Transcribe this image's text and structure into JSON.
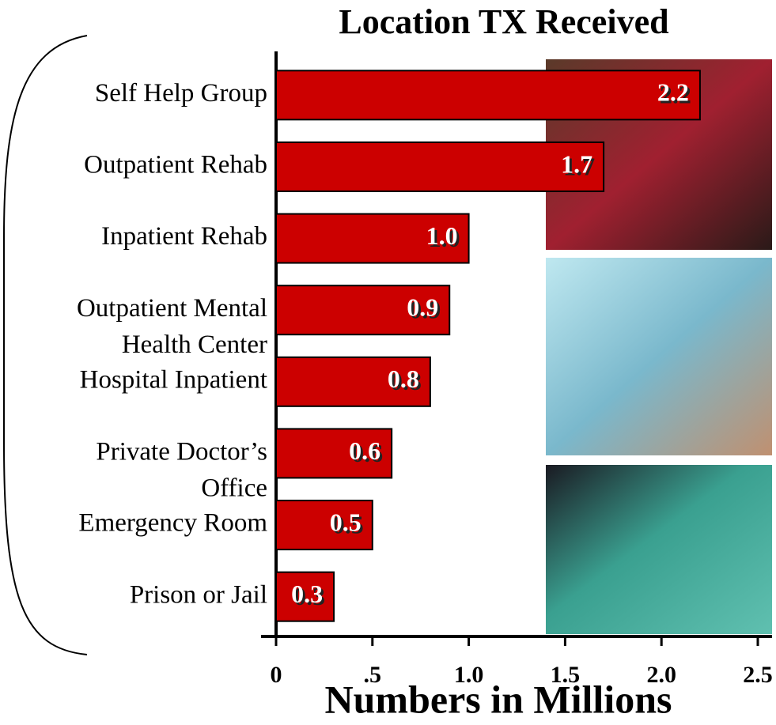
{
  "chart_data": {
    "type": "bar",
    "orientation": "horizontal",
    "title": "Location TX Received",
    "x_label": "Numbers in Millions",
    "categories": [
      "Self Help Group",
      "Outpatient Rehab",
      "Inpatient Rehab",
      "Outpatient Mental\nHealth Center",
      "Hospital Inpatient",
      "Private Doctor’s\nOffice",
      "Emergency Room",
      "Prison or Jail"
    ],
    "values": [
      2.2,
      1.7,
      1.0,
      0.9,
      0.8,
      0.6,
      0.5,
      0.3
    ],
    "value_labels": [
      "2.2",
      "1.7",
      "1.0",
      "0.9",
      "0.8",
      "0.6",
      "0.5",
      "0.3"
    ],
    "color": "#cc0000",
    "xlim": [
      0,
      2.5
    ],
    "xticks": [
      0,
      {
        "value": 0.5,
        "label": ".5"
      },
      {
        "value": 1,
        "label": "1.0"
      },
      1.5,
      {
        "value": 2,
        "label": "2.0"
      },
      2.5
    ]
  }
}
